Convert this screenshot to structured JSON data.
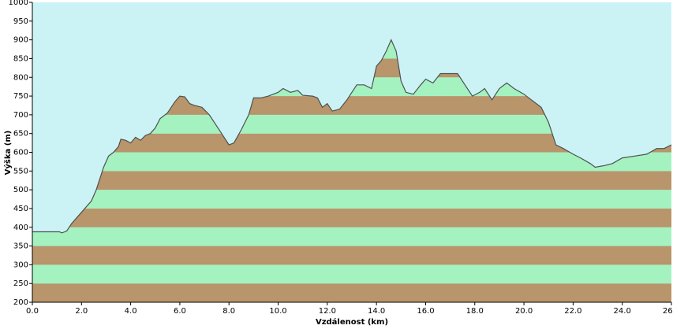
{
  "chart_data": {
    "type": "area",
    "x_label": "Vzdálenost (km)",
    "y_label": "Výška (m)",
    "x": [
      0.0,
      1.1,
      1.2,
      1.4,
      1.6,
      2.0,
      2.4,
      2.6,
      2.9,
      3.1,
      3.3,
      3.5,
      3.6,
      3.8,
      4.0,
      4.2,
      4.4,
      4.6,
      4.8,
      5.0,
      5.2,
      5.5,
      5.8,
      6.0,
      6.2,
      6.4,
      6.6,
      6.9,
      7.2,
      7.6,
      8.0,
      8.2,
      8.5,
      8.8,
      9.0,
      9.3,
      9.6,
      10.0,
      10.2,
      10.5,
      10.8,
      11.0,
      11.4,
      11.6,
      11.8,
      12.0,
      12.2,
      12.5,
      12.8,
      13.0,
      13.2,
      13.5,
      13.8,
      14.0,
      14.2,
      14.4,
      14.6,
      14.8,
      15.0,
      15.2,
      15.5,
      15.8,
      16.0,
      16.3,
      16.6,
      17.0,
      17.3,
      17.6,
      17.9,
      18.2,
      18.4,
      18.7,
      19.0,
      19.3,
      19.6,
      20.0,
      20.3,
      20.7,
      21.0,
      21.3,
      21.6,
      22.0,
      22.3,
      22.7,
      22.9,
      23.3,
      23.6,
      24.0,
      24.5,
      25.0,
      25.4,
      25.7,
      26.0
    ],
    "values": [
      388,
      388,
      385,
      390,
      410,
      440,
      470,
      500,
      560,
      590,
      600,
      615,
      635,
      632,
      625,
      640,
      632,
      645,
      650,
      665,
      690,
      705,
      735,
      750,
      748,
      730,
      725,
      720,
      700,
      660,
      620,
      625,
      660,
      700,
      745,
      745,
      750,
      760,
      770,
      760,
      765,
      752,
      750,
      745,
      720,
      730,
      710,
      715,
      740,
      760,
      780,
      780,
      770,
      830,
      845,
      870,
      900,
      870,
      790,
      760,
      755,
      780,
      795,
      785,
      810,
      810,
      810,
      780,
      750,
      760,
      770,
      740,
      770,
      785,
      770,
      755,
      740,
      720,
      680,
      620,
      610,
      595,
      585,
      570,
      560,
      565,
      570,
      585,
      590,
      595,
      610,
      610,
      620
    ],
    "xlim": [
      0,
      26
    ],
    "xticks": [
      {
        "value": 0,
        "label": "0.0"
      },
      {
        "value": 2,
        "label": "2.0"
      },
      {
        "value": 4,
        "label": "4.0"
      },
      {
        "value": 6,
        "label": "6.0"
      },
      {
        "value": 8,
        "label": "8.0"
      },
      {
        "value": 10,
        "label": "10.0"
      },
      {
        "value": 12,
        "label": "12.0"
      },
      {
        "value": 14,
        "label": "14.0"
      },
      {
        "value": 16,
        "label": "16.0"
      },
      {
        "value": 18,
        "label": "18.0"
      },
      {
        "value": 20,
        "label": "20.0"
      },
      {
        "value": 22,
        "label": "22.0"
      },
      {
        "value": 24,
        "label": "24.0"
      },
      {
        "value": 26,
        "label": "26.0"
      }
    ],
    "ylim": [
      200,
      1000
    ],
    "yticks": [
      200,
      250,
      300,
      350,
      400,
      450,
      500,
      550,
      600,
      650,
      700,
      750,
      800,
      850,
      900,
      950,
      1000
    ],
    "band_colors": [
      "#b8956b",
      "#a3f2c0"
    ],
    "background": "#cbf3f5",
    "color": "#505050"
  }
}
